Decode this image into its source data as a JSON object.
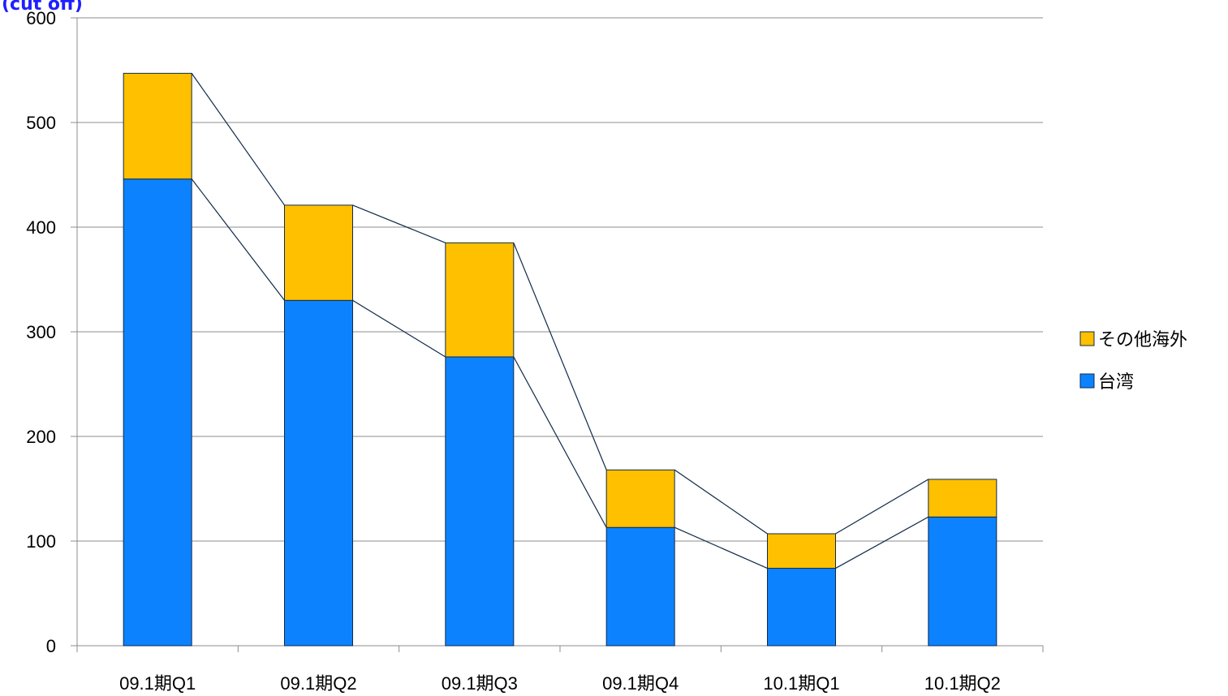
{
  "chart_data": {
    "type": "bar",
    "stacked": true,
    "title": "",
    "title_fragment": "(cut off)",
    "xlabel": "",
    "ylabel": "",
    "categories": [
      "09.1期Q1",
      "09.1期Q2",
      "09.1期Q3",
      "09.1期Q4",
      "10.1期Q1",
      "10.1期Q2"
    ],
    "ylim": [
      0,
      600
    ],
    "yticks": [
      0,
      100,
      200,
      300,
      400,
      500,
      600
    ],
    "grid": true,
    "legend_position": "right",
    "series_lines": true,
    "series": [
      {
        "name": "台湾",
        "color": "#0d82ff",
        "values": [
          446,
          330,
          276,
          113,
          74,
          123
        ]
      },
      {
        "name": "その他海外",
        "color": "#ffc000",
        "values": [
          101,
          91,
          109,
          55,
          33,
          36
        ]
      }
    ],
    "legend": [
      {
        "name": "その他海外",
        "color": "#ffc000"
      },
      {
        "name": "台湾",
        "color": "#0d82ff"
      }
    ],
    "colors": {
      "grid": "#8c8c8c",
      "axis": "#8c8c8c",
      "outline": "#0f2a4a",
      "connector": "#0f2a4a"
    }
  }
}
